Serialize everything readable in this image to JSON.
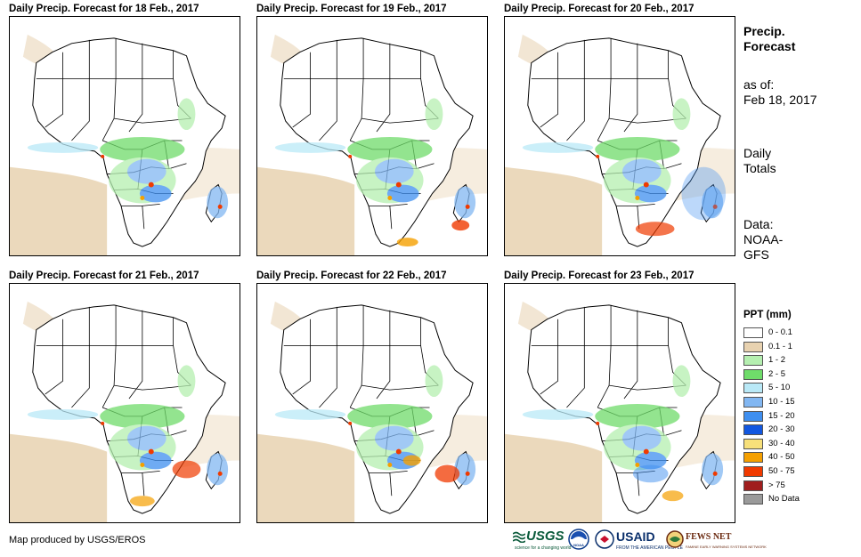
{
  "panels": [
    {
      "title": "Daily Precip. Forecast for 18 Feb., 2017"
    },
    {
      "title": "Daily Precip. Forecast for 19 Feb., 2017"
    },
    {
      "title": "Daily Precip. Forecast for 20 Feb., 2017"
    },
    {
      "title": "Daily Precip. Forecast for 21 Feb., 2017"
    },
    {
      "title": "Daily Precip. Forecast for 22 Feb., 2017"
    },
    {
      "title": "Daily Precip. Forecast for 23 Feb., 2017"
    }
  ],
  "info": {
    "title_line1": "Precip.",
    "title_line2": "Forecast",
    "asof_line1": "as of:",
    "asof_line2": "Feb 18, 2017",
    "totals_line1": "Daily",
    "totals_line2": "Totals",
    "data_line1": "Data:",
    "data_line2": "NOAA-",
    "data_line3": "GFS"
  },
  "legend": {
    "title": "PPT (mm)",
    "items": [
      {
        "label": "0 - 0.1",
        "color": "#ffffff"
      },
      {
        "label": "0.1 - 1",
        "color": "#e8d2b0"
      },
      {
        "label": "1 - 2",
        "color": "#b5efb0"
      },
      {
        "label": "2 - 5",
        "color": "#6fdc6a"
      },
      {
        "label": "5 - 10",
        "color": "#b9e9f7"
      },
      {
        "label": "10 - 15",
        "color": "#82b7f2"
      },
      {
        "label": "15 - 20",
        "color": "#3f8ff0"
      },
      {
        "label": "20 - 30",
        "color": "#1257e0"
      },
      {
        "label": "30 - 40",
        "color": "#f7e07a"
      },
      {
        "label": "40 - 50",
        "color": "#f5a000"
      },
      {
        "label": "50 - 75",
        "color": "#f03a00"
      },
      {
        "label": "> 75",
        "color": "#a01e1e"
      },
      {
        "label": "No Data",
        "color": "#9a9a9a"
      }
    ]
  },
  "credit": "Map produced by USGS/EROS",
  "logos": {
    "usgs": "USGS",
    "usgs_tagline": "science for a changing world",
    "noaa": "NOAA",
    "usaid": "USAID",
    "usaid_tagline": "FROM THE AMERICAN PEOPLE",
    "fews": "FEWS NET",
    "fews_tagline": "FAMINE EARLY WARNING SYSTEMS NETWORK"
  }
}
